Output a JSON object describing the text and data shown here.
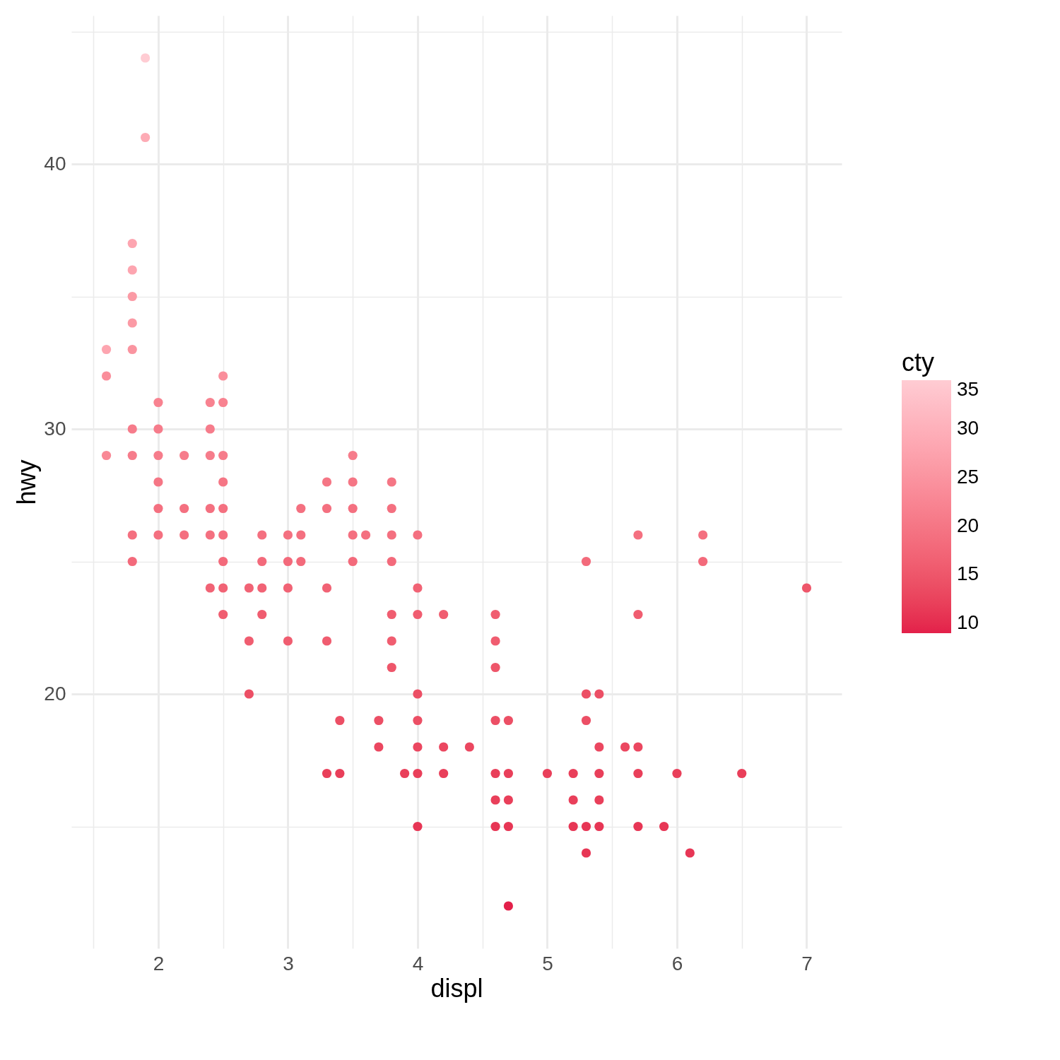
{
  "chart_data": {
    "type": "scatter",
    "xlabel": "displ",
    "ylabel": "hwy",
    "clabel": "cty",
    "x": [
      1.9,
      1.9,
      1.8,
      1.8,
      1.8,
      1.8,
      1.8,
      1.8,
      1.8,
      1.8,
      1.8,
      1.6,
      1.6,
      1.6,
      2.0,
      2.0,
      2.0,
      2.0,
      2.0,
      2.0,
      2.2,
      2.2,
      2.2,
      2.4,
      2.4,
      2.4,
      2.4,
      2.4,
      2.4,
      2.5,
      2.5,
      2.5,
      2.5,
      2.5,
      2.5,
      2.5,
      2.5,
      2.5,
      2.7,
      2.7,
      2.7,
      2.8,
      2.8,
      2.8,
      2.8,
      3.0,
      3.0,
      3.0,
      3.0,
      3.1,
      3.1,
      3.1,
      3.3,
      3.3,
      3.3,
      3.3,
      3.3,
      3.4,
      3.4,
      3.5,
      3.5,
      3.5,
      3.5,
      3.5,
      3.6,
      3.7,
      3.7,
      3.8,
      3.8,
      3.8,
      3.8,
      3.8,
      3.8,
      3.8,
      3.9,
      4.0,
      4.0,
      4.0,
      4.0,
      4.0,
      4.0,
      4.0,
      4.0,
      4.2,
      4.2,
      4.2,
      4.4,
      4.6,
      4.6,
      4.6,
      4.6,
      4.6,
      4.6,
      4.6,
      4.7,
      4.7,
      4.7,
      4.7,
      4.7,
      5.0,
      5.2,
      5.2,
      5.2,
      5.3,
      5.3,
      5.3,
      5.3,
      5.3,
      5.4,
      5.4,
      5.4,
      5.4,
      5.4,
      5.6,
      5.7,
      5.7,
      5.7,
      5.7,
      5.7,
      5.9,
      6.0,
      6.1,
      6.2,
      6.2,
      6.5,
      7.0
    ],
    "values": [
      44,
      41,
      37,
      36,
      35,
      34,
      33,
      30,
      29,
      26,
      25,
      33,
      32,
      29,
      31,
      30,
      29,
      28,
      27,
      26,
      29,
      27,
      26,
      31,
      30,
      29,
      27,
      26,
      24,
      32,
      31,
      29,
      28,
      27,
      26,
      25,
      24,
      23,
      24,
      22,
      20,
      26,
      25,
      24,
      23,
      26,
      25,
      24,
      22,
      27,
      26,
      25,
      28,
      27,
      24,
      22,
      17,
      19,
      17,
      29,
      28,
      27,
      26,
      25,
      26,
      19,
      18,
      28,
      27,
      26,
      25,
      23,
      22,
      21,
      17,
      26,
      24,
      23,
      20,
      19,
      18,
      17,
      15,
      23,
      18,
      17,
      18,
      23,
      22,
      21,
      19,
      17,
      16,
      15,
      19,
      17,
      16,
      15,
      12,
      17,
      17,
      16,
      15,
      25,
      20,
      19,
      15,
      14,
      20,
      18,
      17,
      16,
      15,
      18,
      26,
      23,
      18,
      17,
      15,
      15,
      17,
      14,
      26,
      25,
      17,
      24
    ],
    "cvalues": [
      35,
      29,
      28,
      28,
      26,
      26,
      25,
      21,
      21,
      19,
      18,
      28,
      24,
      23,
      22,
      21,
      21,
      20,
      19,
      19,
      21,
      19,
      19,
      22,
      21,
      21,
      19,
      19,
      17,
      24,
      22,
      21,
      20,
      19,
      19,
      18,
      17,
      16,
      17,
      16,
      14,
      19,
      18,
      17,
      16,
      19,
      18,
      17,
      16,
      19,
      19,
      18,
      20,
      19,
      17,
      16,
      12,
      14,
      12,
      21,
      20,
      19,
      19,
      18,
      19,
      14,
      13,
      20,
      19,
      19,
      18,
      16,
      16,
      15,
      12,
      19,
      17,
      16,
      14,
      14,
      13,
      12,
      11,
      16,
      13,
      12,
      13,
      16,
      16,
      15,
      14,
      12,
      12,
      11,
      14,
      12,
      12,
      11,
      9,
      12,
      12,
      12,
      11,
      18,
      14,
      14,
      11,
      11,
      14,
      13,
      12,
      12,
      11,
      13,
      19,
      16,
      13,
      12,
      11,
      11,
      12,
      11,
      19,
      18,
      12,
      15
    ],
    "xlim": [
      1.33,
      7.27
    ],
    "ylim": [
      10.4,
      45.6
    ],
    "xticks": [
      {
        "value": 1.5,
        "label": null
      },
      2,
      {
        "value": 2.5,
        "label": null
      },
      3,
      {
        "value": 3.5,
        "label": null
      },
      4,
      {
        "value": 4.5,
        "label": null
      },
      5,
      {
        "value": 5.5,
        "label": null
      },
      6,
      {
        "value": 6.5,
        "label": null
      },
      7
    ],
    "yticks": [
      {
        "value": 15,
        "label": null
      },
      20,
      {
        "value": 25,
        "label": null
      },
      30,
      {
        "value": 35,
        "label": null
      },
      40,
      {
        "value": 45,
        "label": null
      }
    ],
    "clim": [
      9,
      35
    ],
    "cticks": [
      10,
      15,
      20,
      25,
      30,
      35
    ],
    "grid": true,
    "marker": "circle"
  }
}
